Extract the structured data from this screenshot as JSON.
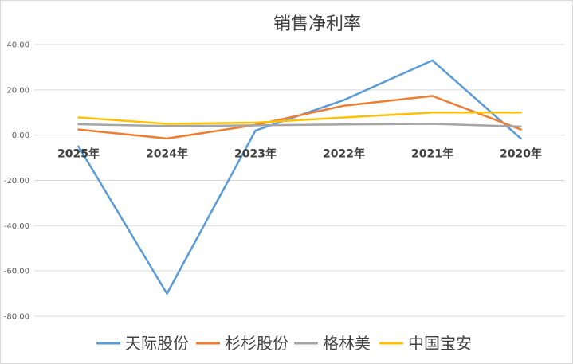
{
  "chart_data": {
    "type": "line",
    "title": "销售净利率",
    "categories": [
      "2025年",
      "2024年",
      "2023年",
      "2022年",
      "2021年",
      "2020年"
    ],
    "ylim": [
      -80,
      40
    ],
    "yticks": [
      "40.00",
      "20.00",
      "0.00",
      "-20.00",
      "-40.00",
      "-60.00",
      "-80.00"
    ],
    "grid": true,
    "legend": "bottom",
    "series": [
      {
        "name": "天际股份",
        "color": "#5b9bd5",
        "values": [
          -5,
          -70,
          2,
          15.5,
          33,
          -1.5
        ]
      },
      {
        "name": "杉杉股份",
        "color": "#ed7d31",
        "values": [
          2.5,
          -1.5,
          4.5,
          13,
          17.3,
          2.5
        ]
      },
      {
        "name": "格林美",
        "color": "#a5a5a5",
        "values": [
          4.8,
          4,
          4.3,
          4.7,
          5,
          3.8
        ]
      },
      {
        "name": "中国宝安",
        "color": "#ffc000",
        "values": [
          7.8,
          5,
          5.5,
          7.8,
          10,
          10
        ]
      }
    ]
  }
}
